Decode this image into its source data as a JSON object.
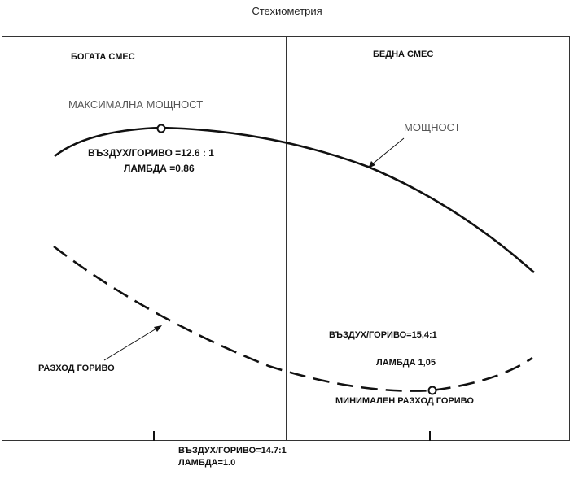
{
  "title": "Стехиометрия",
  "regions": {
    "rich": "БОГАТА СМЕС",
    "lean": "БЕДНА СМЕС"
  },
  "power": {
    "curve_label": "МОЩНОСТ",
    "max_label": "МАКСИМАЛНА МОЩНОСТ",
    "af_ratio": "ВЪЗДУХ/ГОРИВО   =12.6 : 1",
    "lambda": "ЛАМБДА =0.86"
  },
  "fuel": {
    "curve_label": "РАЗХОД ГОРИВО",
    "min_label": "МИНИМАЛЕН РАЗХОД ГОРИВО",
    "af_ratio": "ВЪЗДУХ/ГОРИВО=15,4:1",
    "lambda": "ЛАМБДА   1,05"
  },
  "stoich": {
    "af_ratio": "ВЪЗДУХ/ГОРИВО=14.7:1",
    "lambda": "ЛАМБДА=1.0"
  },
  "colors": {
    "line": "#111111",
    "frame": "#333333",
    "marker_fill": "#ffffff"
  }
}
